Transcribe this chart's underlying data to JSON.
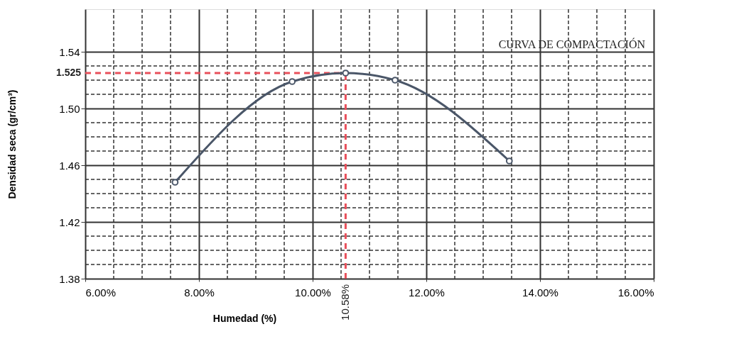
{
  "chart_data": {
    "type": "line",
    "title": "CURVA DE COMPACTACIÓN",
    "xlabel": "Humedad (%)",
    "ylabel": "Densidad seca (gr/cm³)",
    "x": [
      7.58,
      9.64,
      10.58,
      11.45,
      13.46
    ],
    "series": [
      {
        "color": "#4a5668",
        "values": [
          1.448,
          1.519,
          1.525,
          1.52,
          1.463
        ]
      }
    ],
    "xlim": [
      6,
      16
    ],
    "xticks": [
      {
        "value": 6,
        "label": "6.00%"
      },
      {
        "value": 8,
        "label": "8.00%"
      },
      {
        "value": 10,
        "label": "10.00%"
      },
      {
        "value": 12,
        "label": "12.00%"
      },
      {
        "value": 14,
        "label": "14.00%"
      },
      {
        "value": 16,
        "label": "16.00%"
      }
    ],
    "ylim": [
      1.38,
      1.57
    ],
    "yticks": [
      1.38,
      1.42,
      1.46,
      {
        "value": 1.5,
        "label": "1.50"
      },
      1.54
    ],
    "ref_lines": [
      {
        "axis": "y",
        "value": 1.525,
        "label": "1.525",
        "color": "#e8505b",
        "line_style": "dashed"
      },
      {
        "axis": "x",
        "value": 10.58,
        "label": "10.58%",
        "color": "#e8505b",
        "line_style": "dashed"
      }
    ],
    "grid": true,
    "marker": "circle",
    "line_style": "solid"
  }
}
